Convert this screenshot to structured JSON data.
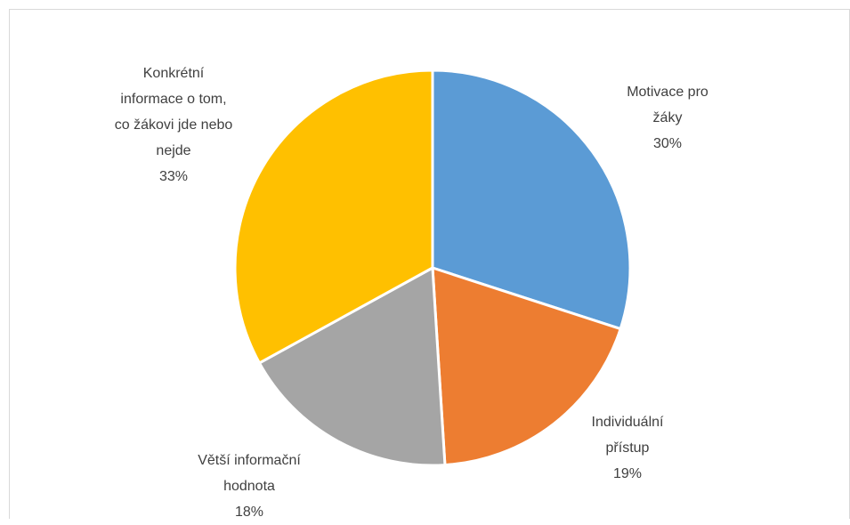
{
  "chart_data": {
    "type": "pie",
    "categories": [
      "Motivace pro žáky",
      "Individuální přístup",
      "Větší informační hodnota",
      "Konkrétní informace o tom, co žákovi jde nebo nejde"
    ],
    "values": [
      30,
      19,
      18,
      33
    ],
    "value_labels": [
      "30%",
      "19%",
      "18%",
      "33%"
    ],
    "colors": [
      "#5b9bd5",
      "#ed7d31",
      "#a5a5a5",
      "#ffc000"
    ]
  }
}
